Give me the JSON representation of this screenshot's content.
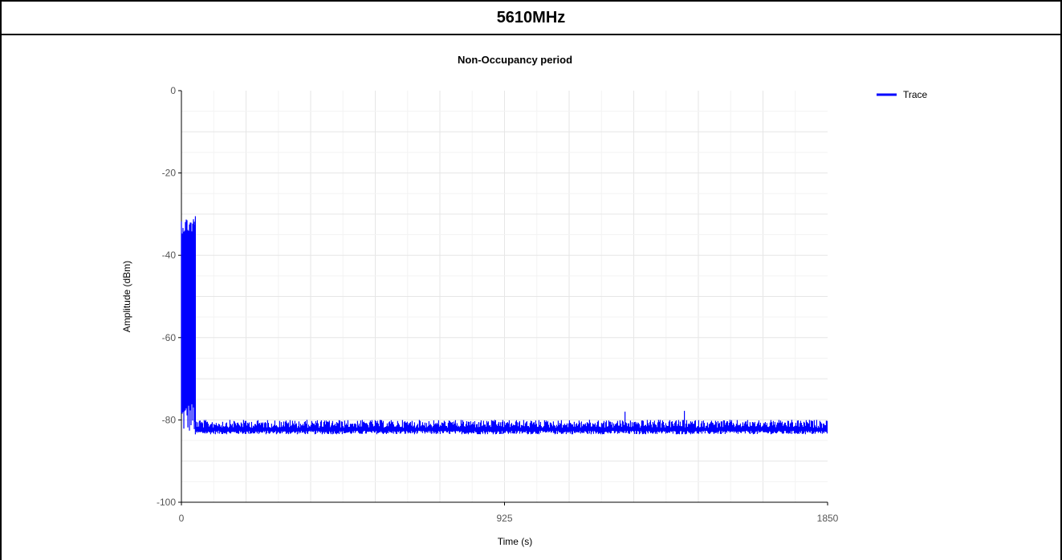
{
  "header": {
    "title": "5610MHz"
  },
  "chart_data": {
    "type": "line",
    "title": "Non-Occupancy period",
    "xlabel": "Time (s)",
    "ylabel": "Amplitude (dBm)",
    "xlim": [
      0,
      1850
    ],
    "ylim": [
      -100,
      0
    ],
    "x_ticks": [
      0,
      925,
      1850
    ],
    "y_ticks": [
      0,
      -20,
      -40,
      -60,
      -80,
      -100
    ],
    "x_tick_labels": [
      "0",
      "925",
      "1850"
    ],
    "y_tick_labels": [
      "0",
      "-20",
      "-40",
      "-60",
      "-80",
      "-100"
    ],
    "grid": true,
    "legend": {
      "position": "top-right",
      "entries": [
        "Trace"
      ]
    },
    "series": [
      {
        "name": "Trace",
        "color": "#0000ff",
        "segments": [
          {
            "x_start": 0,
            "x_end": 40,
            "y_min": -83.5,
            "y_max": -30.5
          },
          {
            "x_start": 40,
            "x_end": 1850,
            "y_min": -83.5,
            "y_max": -80
          }
        ],
        "peaks": [
          {
            "x": 1270,
            "y": -78
          },
          {
            "x": 1440,
            "y": -77.8
          }
        ]
      }
    ]
  }
}
